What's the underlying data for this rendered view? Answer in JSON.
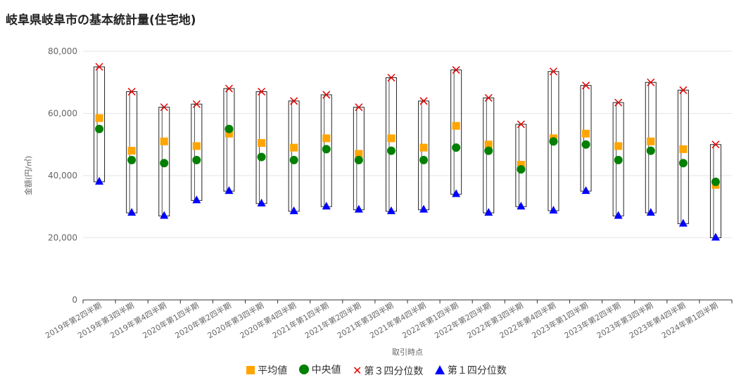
{
  "title": "岐阜県岐阜市の基本統計量(住宅地)",
  "chart_data": {
    "type": "boxplot",
    "xlabel": "取引時点",
    "ylabel": "金額(円/㎡)",
    "ylim": [
      0,
      80000
    ],
    "yticks": [
      0,
      20000,
      40000,
      60000,
      80000
    ],
    "ytick_labels": [
      "0",
      "20,000",
      "40,000",
      "60,000",
      "80,000"
    ],
    "grid": true,
    "legend_position": "bottom",
    "categories": [
      "2019年第2四半期",
      "2019年第3四半期",
      "2019年第4四半期",
      "2020年第1四半期",
      "2020年第2四半期",
      "2020年第3四半期",
      "2020年第4四半期",
      "2021年第1四半期",
      "2021年第2四半期",
      "2021年第3四半期",
      "2021年第4四半期",
      "2022年第1四半期",
      "2022年第2四半期",
      "2022年第3四半期",
      "2022年第4四半期",
      "2023年第1四半期",
      "2023年第2四半期",
      "2023年第3四半期",
      "2023年第4四半期",
      "2024年第1四半期"
    ],
    "series": [
      {
        "name": "平均値",
        "marker": "square",
        "color": "#ffa500",
        "values": [
          58500,
          48000,
          51000,
          49500,
          53500,
          50500,
          49000,
          52000,
          47000,
          52000,
          49000,
          56000,
          50000,
          43500,
          52000,
          53500,
          49500,
          51000,
          48500,
          37000
        ]
      },
      {
        "name": "中央値",
        "marker": "circle",
        "color": "#008000",
        "values": [
          55000,
          45000,
          44000,
          45000,
          55000,
          46000,
          45000,
          48500,
          45000,
          48000,
          45000,
          49000,
          48000,
          42000,
          51000,
          50000,
          45000,
          48000,
          44000,
          38000
        ]
      },
      {
        "name": "第３四分位数",
        "marker": "cross",
        "color": "#e60000",
        "values": [
          75000,
          67000,
          62000,
          63000,
          68000,
          67000,
          64000,
          66000,
          62000,
          71500,
          64000,
          74000,
          65000,
          56500,
          73500,
          69000,
          63500,
          70000,
          67500,
          50000
        ]
      },
      {
        "name": "第１四分位数",
        "marker": "triangle",
        "color": "#0000ff",
        "values": [
          38000,
          28000,
          27000,
          32000,
          35000,
          31000,
          28500,
          30000,
          29000,
          28500,
          29000,
          34000,
          28000,
          30000,
          28700,
          35000,
          27000,
          28000,
          24500,
          20000
        ]
      }
    ]
  }
}
